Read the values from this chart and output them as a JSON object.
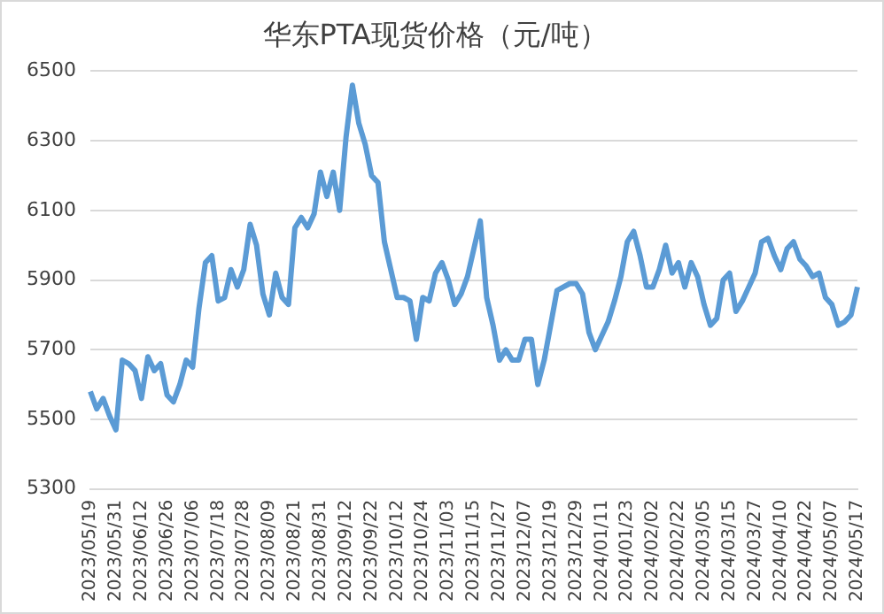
{
  "chart_data": {
    "type": "line",
    "title": "华东PTA现货价格（元/吨）",
    "categories": [
      "2023/05/19",
      null,
      null,
      null,
      "2023/05/31",
      null,
      null,
      null,
      "2023/06/12",
      null,
      null,
      null,
      "2023/06/26",
      null,
      null,
      null,
      "2023/07/06",
      null,
      null,
      null,
      "2023/07/18",
      null,
      null,
      null,
      "2023/07/28",
      null,
      null,
      null,
      "2023/08/09",
      null,
      null,
      null,
      "2023/08/21",
      null,
      null,
      null,
      "2023/08/31",
      null,
      null,
      null,
      "2023/09/12",
      null,
      null,
      null,
      "2023/09/22",
      null,
      null,
      null,
      "2023/10/12",
      null,
      null,
      null,
      "2023/10/24",
      null,
      null,
      null,
      "2023/11/03",
      null,
      null,
      null,
      "2023/11/15",
      null,
      null,
      null,
      "2023/11/27",
      null,
      null,
      null,
      "2023/12/07",
      null,
      null,
      null,
      "2023/12/19",
      null,
      null,
      null,
      "2023/12/29",
      null,
      null,
      null,
      "2024/01/11",
      null,
      null,
      null,
      "2024/01/23",
      null,
      null,
      null,
      "2024/02/02",
      null,
      null,
      null,
      "2024/02/22",
      null,
      null,
      null,
      "2024/03/05",
      null,
      null,
      null,
      "2024/03/15",
      null,
      null,
      null,
      "2024/03/27",
      null,
      null,
      null,
      "2024/04/10",
      null,
      null,
      null,
      "2024/04/22",
      null,
      null,
      null,
      "2024/05/07",
      null,
      null,
      null,
      "2024/05/17"
    ],
    "series": [
      {
        "color": "#5b9bd5",
        "values": [
          5580,
          5530,
          5560,
          5510,
          5470,
          5670,
          5660,
          5640,
          5560,
          5680,
          5640,
          5660,
          5570,
          5550,
          5600,
          5670,
          5650,
          5820,
          5950,
          5970,
          5840,
          5850,
          5930,
          5880,
          5930,
          6060,
          6000,
          5860,
          5800,
          5920,
          5850,
          5830,
          6050,
          6080,
          6050,
          6090,
          6210,
          6140,
          6210,
          6100,
          6310,
          6460,
          6350,
          6290,
          6200,
          6180,
          6010,
          5930,
          5850,
          5850,
          5840,
          5730,
          5850,
          5840,
          5920,
          5950,
          5900,
          5830,
          5860,
          5910,
          5990,
          6070,
          5850,
          5770,
          5670,
          5700,
          5670,
          5670,
          5730,
          5730,
          5600,
          5670,
          5770,
          5870,
          5880,
          5890,
          5890,
          5860,
          5750,
          5700,
          5740,
          5780,
          5840,
          5910,
          6010,
          6040,
          5970,
          5880,
          5880,
          5930,
          6000,
          5920,
          5950,
          5880,
          5950,
          5910,
          5830,
          5770,
          5790,
          5900,
          5920,
          5810,
          5840,
          5880,
          5920,
          6010,
          6020,
          5970,
          5930,
          5990,
          6010,
          5960,
          5940,
          5910,
          5920,
          5850,
          5830,
          5770,
          5780,
          5800,
          5880
        ]
      }
    ],
    "ylim": [
      5300,
      6500
    ],
    "yticks": [
      5300,
      5500,
      5700,
      5900,
      6100,
      6300,
      6500
    ],
    "grid": "y",
    "legend": false,
    "marker": "none",
    "line_style": "solid"
  }
}
